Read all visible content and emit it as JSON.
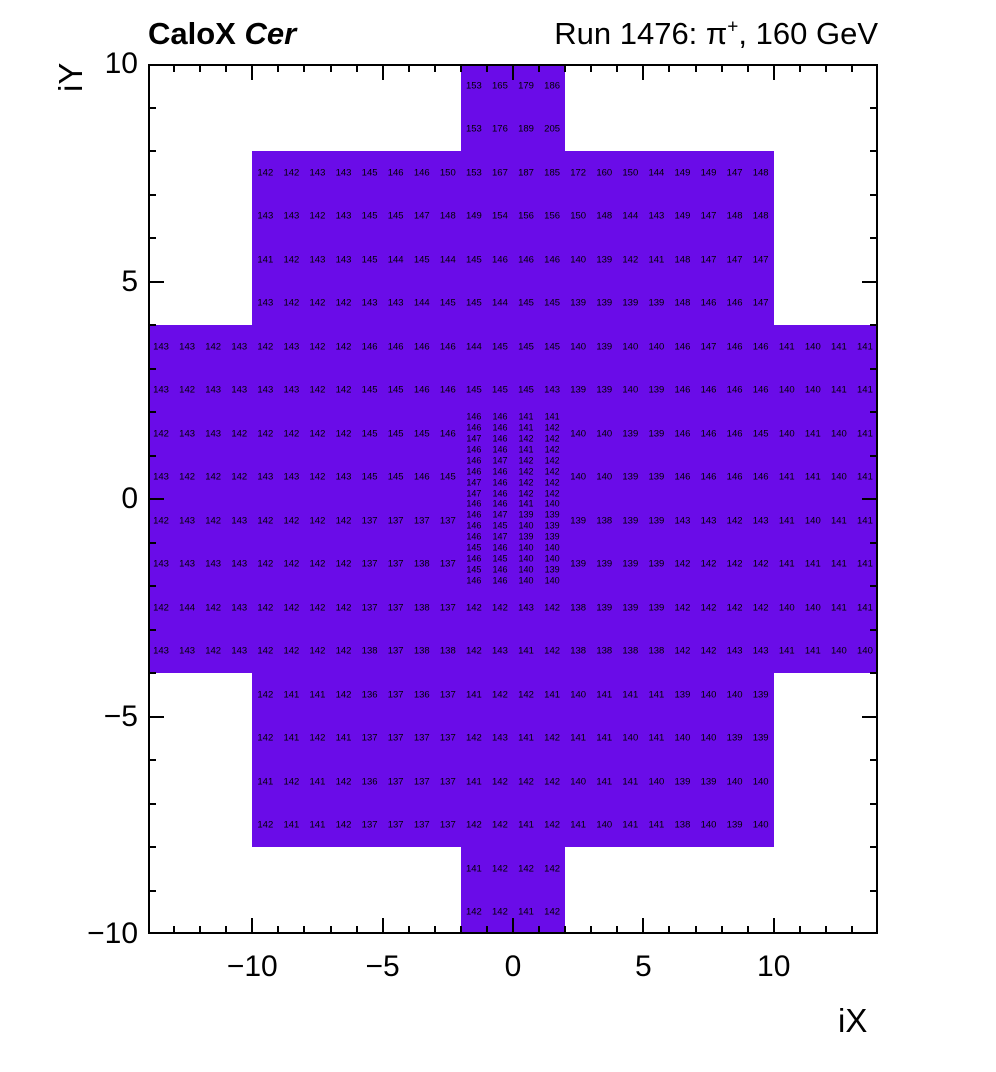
{
  "header": {
    "left_title_bold": "CaloX",
    "left_title_italic": "Cer",
    "right_title_prefix": "Run 1476:  ",
    "right_title_pi": "π",
    "right_title_charge": "+",
    "right_title_suffix": ", 160 GeV"
  },
  "chart_data": {
    "type": "heatmap",
    "title": "CaloX Cer    Run 1476: π+, 160 GeV",
    "xlabel": "iX",
    "ylabel": "iY",
    "xlim": [
      -14,
      14
    ],
    "ylim": [
      -10,
      10
    ],
    "x_ticks": [
      -10,
      -5,
      0,
      5,
      10
    ],
    "y_ticks": [
      -10,
      -5,
      0,
      5,
      10
    ],
    "minor_tick_step": 1,
    "grid": false,
    "legend": "none",
    "cell_color": "#6A0CE8",
    "value_color": "#000000",
    "coarse_rows": [
      {
        "iy": 9.5,
        "segments": [
          {
            "x0": -2,
            "values": [
              153,
              165,
              179,
              186
            ]
          }
        ]
      },
      {
        "iy": 8.5,
        "segments": [
          {
            "x0": -2,
            "values": [
              153,
              176,
              189,
              205
            ]
          }
        ]
      },
      {
        "iy": 7.5,
        "segments": [
          {
            "x0": -10,
            "values": [
              142,
              142,
              143,
              143,
              145,
              146,
              146,
              150,
              153,
              167,
              187,
              185,
              172,
              160,
              150,
              144,
              149,
              149,
              147,
              148
            ]
          }
        ]
      },
      {
        "iy": 6.5,
        "segments": [
          {
            "x0": -10,
            "values": [
              143,
              143,
              142,
              143,
              145,
              145,
              147,
              148,
              149,
              154,
              156,
              156,
              150,
              148,
              144,
              143,
              149,
              147,
              148,
              148
            ]
          }
        ]
      },
      {
        "iy": 5.5,
        "segments": [
          {
            "x0": -10,
            "values": [
              141,
              142,
              143,
              143,
              145,
              144,
              145,
              144,
              145,
              146,
              146,
              146,
              140,
              139,
              142,
              141,
              148,
              147,
              147,
              147
            ]
          }
        ]
      },
      {
        "iy": 4.5,
        "segments": [
          {
            "x0": -10,
            "values": [
              143,
              142,
              142,
              142,
              143,
              143,
              144,
              145,
              145,
              144,
              145,
              145,
              139,
              139,
              139,
              139,
              148,
              146,
              146,
              147
            ]
          }
        ]
      },
      {
        "iy": 3.5,
        "segments": [
          {
            "x0": -14,
            "values": [
              143,
              143,
              142,
              143,
              142,
              143,
              142,
              142,
              146,
              146,
              146,
              146,
              144,
              145,
              145,
              145,
              140,
              139,
              140,
              140,
              146,
              147,
              146,
              146,
              141,
              140,
              141,
              141
            ]
          }
        ]
      },
      {
        "iy": 2.5,
        "segments": [
          {
            "x0": -14,
            "values": [
              143,
              142,
              143,
              143,
              143,
              143,
              142,
              142,
              145,
              145,
              146,
              146,
              145,
              145,
              145,
              143,
              139,
              139,
              140,
              139,
              146,
              146,
              146,
              146,
              140,
              140,
              141,
              141
            ]
          }
        ]
      },
      {
        "iy": 1.5,
        "segments": [
          {
            "x0": -14,
            "values": [
              142,
              143,
              143,
              142,
              142,
              142,
              142,
              142,
              145,
              145,
              145,
              146
            ]
          },
          {
            "x0": 2,
            "values": [
              140,
              140,
              139,
              139,
              146,
              146,
              146,
              145,
              140,
              141,
              140,
              141
            ]
          }
        ]
      },
      {
        "iy": 0.5,
        "segments": [
          {
            "x0": -14,
            "values": [
              143,
              142,
              142,
              142,
              143,
              143,
              142,
              143,
              145,
              145,
              146,
              145
            ]
          },
          {
            "x0": 2,
            "values": [
              140,
              140,
              139,
              139,
              146,
              146,
              146,
              146,
              141,
              141,
              140,
              141
            ]
          }
        ]
      },
      {
        "iy": -0.5,
        "segments": [
          {
            "x0": -14,
            "values": [
              142,
              143,
              142,
              143,
              142,
              142,
              142,
              142,
              137,
              137,
              137,
              137
            ]
          },
          {
            "x0": 2,
            "values": [
              139,
              138,
              139,
              139,
              143,
              143,
              142,
              143,
              141,
              140,
              141,
              141
            ]
          }
        ]
      },
      {
        "iy": -1.5,
        "segments": [
          {
            "x0": -14,
            "values": [
              143,
              143,
              143,
              143,
              142,
              142,
              142,
              142,
              137,
              137,
              138,
              137
            ]
          },
          {
            "x0": 2,
            "values": [
              139,
              139,
              139,
              139,
              142,
              142,
              142,
              142,
              141,
              141,
              141,
              141
            ]
          }
        ]
      },
      {
        "iy": -2.5,
        "segments": [
          {
            "x0": -14,
            "values": [
              142,
              144,
              142,
              143,
              142,
              142,
              142,
              142,
              137,
              137,
              138,
              137,
              142,
              142,
              143,
              142,
              138,
              139,
              139,
              139,
              142,
              142,
              142,
              142,
              140,
              140,
              141,
              141
            ]
          }
        ]
      },
      {
        "iy": -3.5,
        "segments": [
          {
            "x0": -14,
            "values": [
              143,
              143,
              142,
              143,
              142,
              142,
              142,
              142,
              138,
              137,
              138,
              138,
              142,
              143,
              141,
              142,
              138,
              138,
              138,
              138,
              142,
              142,
              143,
              143,
              141,
              141,
              140,
              140
            ]
          }
        ]
      },
      {
        "iy": -4.5,
        "segments": [
          {
            "x0": -10,
            "values": [
              142,
              141,
              141,
              142,
              136,
              137,
              136,
              137,
              141,
              142,
              142,
              141,
              140,
              141,
              141,
              141,
              139,
              140,
              140,
              139
            ]
          }
        ]
      },
      {
        "iy": -5.5,
        "segments": [
          {
            "x0": -10,
            "values": [
              142,
              141,
              142,
              141,
              137,
              137,
              137,
              137,
              142,
              143,
              141,
              142,
              141,
              141,
              140,
              141,
              140,
              140,
              139,
              139
            ]
          }
        ]
      },
      {
        "iy": -6.5,
        "segments": [
          {
            "x0": -10,
            "values": [
              141,
              142,
              141,
              142,
              136,
              137,
              137,
              137,
              141,
              142,
              142,
              142,
              140,
              141,
              141,
              140,
              139,
              139,
              140,
              140
            ]
          }
        ]
      },
      {
        "iy": -7.5,
        "segments": [
          {
            "x0": -10,
            "values": [
              142,
              141,
              141,
              142,
              137,
              137,
              137,
              137,
              142,
              142,
              141,
              142,
              141,
              140,
              141,
              141,
              138,
              140,
              139,
              140
            ]
          }
        ]
      },
      {
        "iy": -8.5,
        "segments": [
          {
            "x0": -2,
            "values": [
              141,
              142,
              142,
              142
            ]
          }
        ]
      },
      {
        "iy": -9.5,
        "segments": [
          {
            "x0": -2,
            "values": [
              142,
              142,
              141,
              142
            ]
          }
        ]
      }
    ],
    "fine_region": {
      "x0": -2,
      "y_top": 2,
      "cell_w": 1,
      "cell_h": 0.25,
      "values": [
        [
          146,
          146,
          141,
          141
        ],
        [
          146,
          146,
          141,
          142
        ],
        [
          147,
          146,
          142,
          142
        ],
        [
          146,
          146,
          141,
          142
        ],
        [
          146,
          147,
          142,
          142
        ],
        [
          146,
          146,
          142,
          142
        ],
        [
          147,
          146,
          142,
          142
        ],
        [
          147,
          146,
          142,
          142
        ],
        [
          146,
          146,
          141,
          140
        ],
        [
          146,
          147,
          139,
          139
        ],
        [
          146,
          145,
          140,
          139
        ],
        [
          146,
          147,
          139,
          139
        ],
        [
          145,
          146,
          140,
          140
        ],
        [
          146,
          145,
          140,
          140
        ],
        [
          145,
          146,
          140,
          139
        ],
        [
          146,
          146,
          140,
          140
        ]
      ]
    }
  }
}
